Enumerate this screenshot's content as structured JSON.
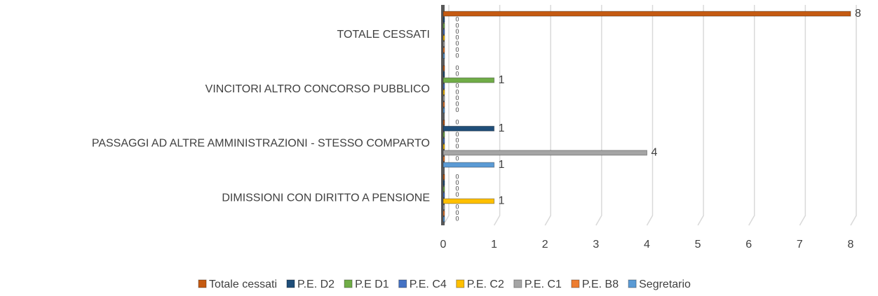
{
  "chart_data": {
    "type": "bar",
    "orientation": "horizontal",
    "categories": [
      "TOTALE CESSATI",
      "VINCITORI ALTRO CONCORSO PUBBLICO",
      "PASSAGGI AD ALTRE AMMINISTRAZIONI - STESSO COMPARTO",
      "DIMISSIONI CON DIRITTO A PENSIONE"
    ],
    "series": [
      {
        "name": "Totale cessati",
        "color": "#c55a11",
        "values": [
          8,
          0,
          0,
          0
        ]
      },
      {
        "name": "P.E. D2",
        "color": "#1f4e79",
        "values": [
          0,
          0,
          1,
          0
        ]
      },
      {
        "name": "P.E D1",
        "color": "#70ad47",
        "values": [
          0,
          1,
          0,
          0
        ]
      },
      {
        "name": "P.E. C4",
        "color": "#4472c4",
        "values": [
          0,
          0,
          0,
          0
        ]
      },
      {
        "name": "P.E. C2",
        "color": "#ffc000",
        "values": [
          0,
          0,
          0,
          1
        ]
      },
      {
        "name": "P.E. C1",
        "color": "#a5a5a5",
        "values": [
          0,
          0,
          4,
          0
        ]
      },
      {
        "name": "P.E. B8",
        "color": "#ed7d31",
        "values": [
          0,
          0,
          0,
          0
        ]
      },
      {
        "name": "Segretario",
        "color": "#5b9bd5",
        "values": [
          0,
          0,
          1,
          0
        ]
      }
    ],
    "xlim": [
      0,
      8
    ],
    "xticks": [
      0,
      1,
      2,
      3,
      4,
      5,
      6,
      7,
      8
    ],
    "grid": true,
    "legend": "bottom"
  }
}
